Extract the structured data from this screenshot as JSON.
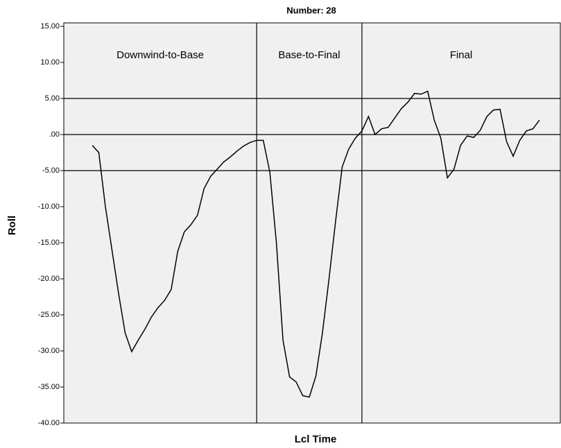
{
  "chart_data": {
    "type": "line",
    "title": "Number: 28",
    "x_label": "Lcl Time",
    "y_label": "Roll",
    "categories": [
      null,
      null,
      null,
      null,
      null,
      null,
      null,
      null,
      null,
      null,
      null,
      null,
      null,
      null,
      null,
      null,
      null,
      null,
      null,
      null,
      null,
      null,
      null,
      null,
      null,
      null,
      null,
      null,
      null,
      null,
      null,
      null,
      null,
      null,
      null,
      null,
      null,
      null,
      null,
      null,
      null,
      null,
      null,
      null,
      null,
      null,
      null,
      null,
      null,
      null,
      null,
      null,
      null,
      null,
      null,
      null,
      null,
      null,
      null,
      null,
      null,
      null,
      null,
      null,
      null,
      null,
      null,
      null,
      null
    ],
    "series": [
      {
        "name": "Roll",
        "color": "#000000",
        "values": [
          -1.5,
          -2.5,
          -10,
          -16,
          -22,
          -27.5,
          -30.1,
          -28.5,
          -27,
          -25.3,
          -24,
          -23,
          -21.5,
          -16.2,
          -13.5,
          -12.5,
          -11.2,
          -7.5,
          -5.8,
          -4.8,
          -3.8,
          -3.1,
          -2.3,
          -1.6,
          -1.1,
          -0.8,
          -0.8,
          -5.2,
          -15,
          -28.5,
          -33.6,
          -34.3,
          -36.2,
          -36.4,
          -33.5,
          -27.5,
          -20,
          -12,
          -4.5,
          -2,
          -0.5,
          0.5,
          2.5,
          0,
          0.8,
          1,
          2.3,
          3.6,
          4.5,
          5.7,
          5.6,
          6,
          2,
          -0.5,
          -6,
          -4.8,
          -1.5,
          -0.2,
          -0.4,
          0.6,
          2.5,
          3.4,
          3.5,
          -1,
          -3,
          -0.8,
          0.5,
          0.8,
          2
        ]
      }
    ],
    "ylim": [
      -40,
      15
    ],
    "yticks": [
      {
        "value": -40,
        "label": "-40.00"
      },
      {
        "value": -35,
        "label": "-35.00"
      },
      {
        "value": -30,
        "label": "-30.00"
      },
      {
        "value": -25,
        "label": "-25.00"
      },
      {
        "value": -20,
        "label": "-20.00"
      },
      {
        "value": -15,
        "label": "-15.00"
      },
      {
        "value": -10,
        "label": "-10.00"
      },
      {
        "value": -5,
        "label": "-5.00"
      },
      {
        "value": 0,
        "label": ".00"
      },
      {
        "value": 5,
        "label": "5.00"
      },
      {
        "value": 10,
        "label": "10.00"
      },
      {
        "value": 15,
        "label": "15.00"
      }
    ],
    "y_reference_lines": [
      5,
      0,
      -5
    ],
    "x_reference_lines": [
      25,
      41
    ],
    "annotations": [
      "Downwind-to-Base",
      "Base-to-Final",
      "Final"
    ],
    "plot_background": "#f0f0f0"
  }
}
